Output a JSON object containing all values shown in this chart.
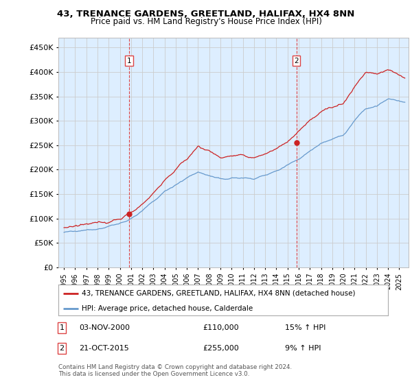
{
  "title": "43, TRENANCE GARDENS, GREETLAND, HALIFAX, HX4 8NN",
  "subtitle": "Price paid vs. HM Land Registry's House Price Index (HPI)",
  "legend_line1": "43, TRENANCE GARDENS, GREETLAND, HALIFAX, HX4 8NN (detached house)",
  "legend_line2": "HPI: Average price, detached house, Calderdale",
  "annotation1_date": "03-NOV-2000",
  "annotation1_price": "£110,000",
  "annotation1_hpi": "15% ↑ HPI",
  "annotation2_date": "21-OCT-2015",
  "annotation2_price": "£255,000",
  "annotation2_hpi": "9% ↑ HPI",
  "footer": "Contains HM Land Registry data © Crown copyright and database right 2024.\nThis data is licensed under the Open Government Licence v3.0.",
  "red_color": "#cc2222",
  "blue_color": "#6699cc",
  "vline_color": "#dd4444",
  "bg_fill": "#ddeeff",
  "background_color": "#ffffff",
  "grid_color": "#cccccc",
  "ylim": [
    0,
    470000
  ],
  "yticks": [
    0,
    50000,
    100000,
    150000,
    200000,
    250000,
    300000,
    350000,
    400000,
    450000
  ],
  "xlim_left": 1994.5,
  "xlim_right": 2025.83,
  "purchase1_x": 2000.84,
  "purchase1_y": 110000,
  "purchase2_x": 2015.79,
  "purchase2_y": 255000
}
